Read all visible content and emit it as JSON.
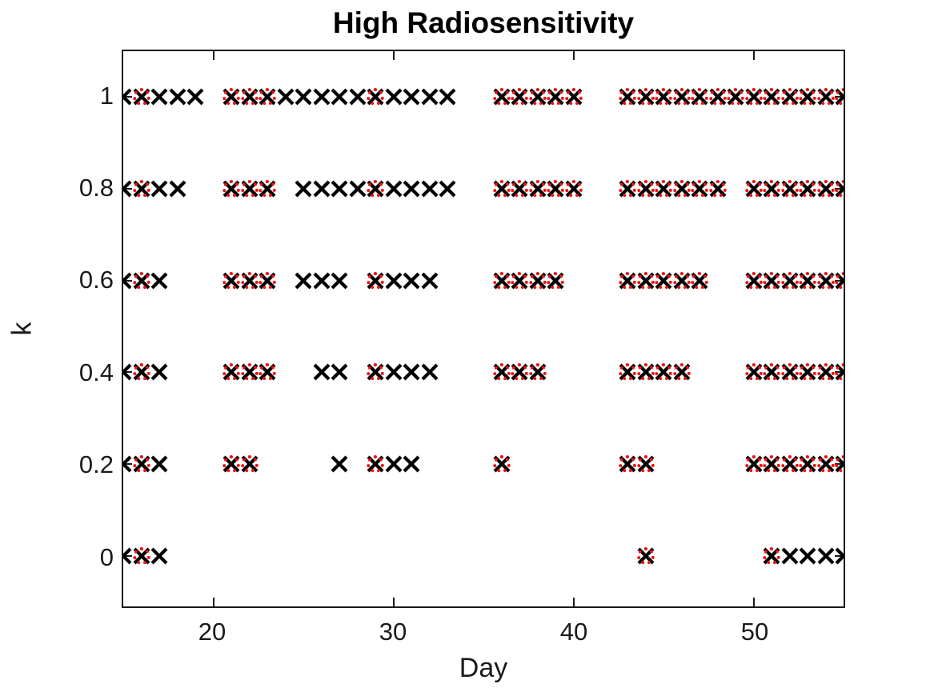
{
  "chart_data": {
    "type": "scatter",
    "title": "High Radiosensitivity",
    "xlabel": "Day",
    "ylabel": "k",
    "xlim": [
      15,
      55
    ],
    "ylim": [
      -0.11,
      1.1
    ],
    "grid": false,
    "legend": null,
    "xticks": [
      {
        "v": 20,
        "label": "20"
      },
      {
        "v": 30,
        "label": "30"
      },
      {
        "v": 40,
        "label": "40"
      },
      {
        "v": 50,
        "label": "50"
      }
    ],
    "yticks": [
      {
        "v": 0,
        "label": "0"
      },
      {
        "v": 0.2,
        "label": "0.2"
      },
      {
        "v": 0.4,
        "label": "0.4"
      },
      {
        "v": 0.6,
        "label": "0.6"
      },
      {
        "v": 0.8,
        "label": "0.8"
      },
      {
        "v": 1,
        "label": "1"
      }
    ],
    "series": [
      {
        "name": "black-x-markers",
        "marker": "x",
        "color": "#000000",
        "groups": [
          {
            "k": 1,
            "days": [
              15,
              16,
              17,
              18,
              19,
              21,
              22,
              23,
              24,
              25,
              26,
              27,
              28,
              29,
              30,
              31,
              32,
              33,
              36,
              37,
              38,
              39,
              40,
              43,
              44,
              45,
              46,
              47,
              48,
              49,
              50,
              51,
              52,
              53,
              54,
              55
            ]
          },
          {
            "k": 0.8,
            "days": [
              15,
              16,
              17,
              18,
              21,
              22,
              23,
              25,
              26,
              27,
              28,
              29,
              30,
              31,
              32,
              33,
              36,
              37,
              38,
              39,
              40,
              43,
              44,
              45,
              46,
              47,
              48,
              50,
              51,
              52,
              53,
              54,
              55
            ]
          },
          {
            "k": 0.6,
            "days": [
              15,
              16,
              17,
              21,
              22,
              23,
              25,
              26,
              27,
              29,
              30,
              31,
              32,
              36,
              37,
              38,
              39,
              43,
              44,
              45,
              46,
              47,
              50,
              51,
              52,
              53,
              54,
              55
            ]
          },
          {
            "k": 0.4,
            "days": [
              15,
              16,
              17,
              21,
              22,
              23,
              26,
              27,
              29,
              30,
              31,
              32,
              36,
              37,
              38,
              43,
              44,
              45,
              46,
              50,
              51,
              52,
              53,
              54,
              55
            ]
          },
          {
            "k": 0.2,
            "days": [
              15,
              16,
              17,
              21,
              22,
              27,
              29,
              30,
              31,
              36,
              43,
              44,
              50,
              51,
              52,
              53,
              54,
              55
            ]
          },
          {
            "k": 0,
            "days": [
              15,
              16,
              17,
              44,
              51,
              52,
              53,
              54,
              55
            ]
          }
        ]
      },
      {
        "name": "red-circle-markers",
        "marker": "o",
        "color": "#ee1111",
        "groups": [
          {
            "k": 1,
            "days": [
              16,
              21,
              22,
              23,
              29,
              36,
              37,
              38,
              39,
              40,
              43,
              44,
              45,
              46,
              47,
              48,
              49,
              50,
              51,
              52,
              53,
              54,
              55
            ]
          },
          {
            "k": 0.8,
            "days": [
              16,
              21,
              22,
              23,
              29,
              36,
              37,
              38,
              39,
              40,
              43,
              44,
              45,
              46,
              47,
              48,
              50,
              51,
              52,
              53,
              54,
              55
            ]
          },
          {
            "k": 0.6,
            "days": [
              16,
              21,
              22,
              23,
              29,
              36,
              37,
              38,
              39,
              43,
              44,
              45,
              46,
              47,
              50,
              51,
              52,
              53,
              54,
              55
            ]
          },
          {
            "k": 0.4,
            "days": [
              16,
              21,
              22,
              23,
              29,
              36,
              37,
              38,
              43,
              44,
              45,
              46,
              50,
              51,
              52,
              53,
              54,
              55
            ]
          },
          {
            "k": 0.2,
            "days": [
              16,
              21,
              22,
              29,
              36,
              43,
              44,
              50,
              51,
              52,
              53,
              54,
              55
            ]
          },
          {
            "k": 0,
            "days": [
              16,
              44,
              51
            ]
          }
        ]
      }
    ]
  }
}
